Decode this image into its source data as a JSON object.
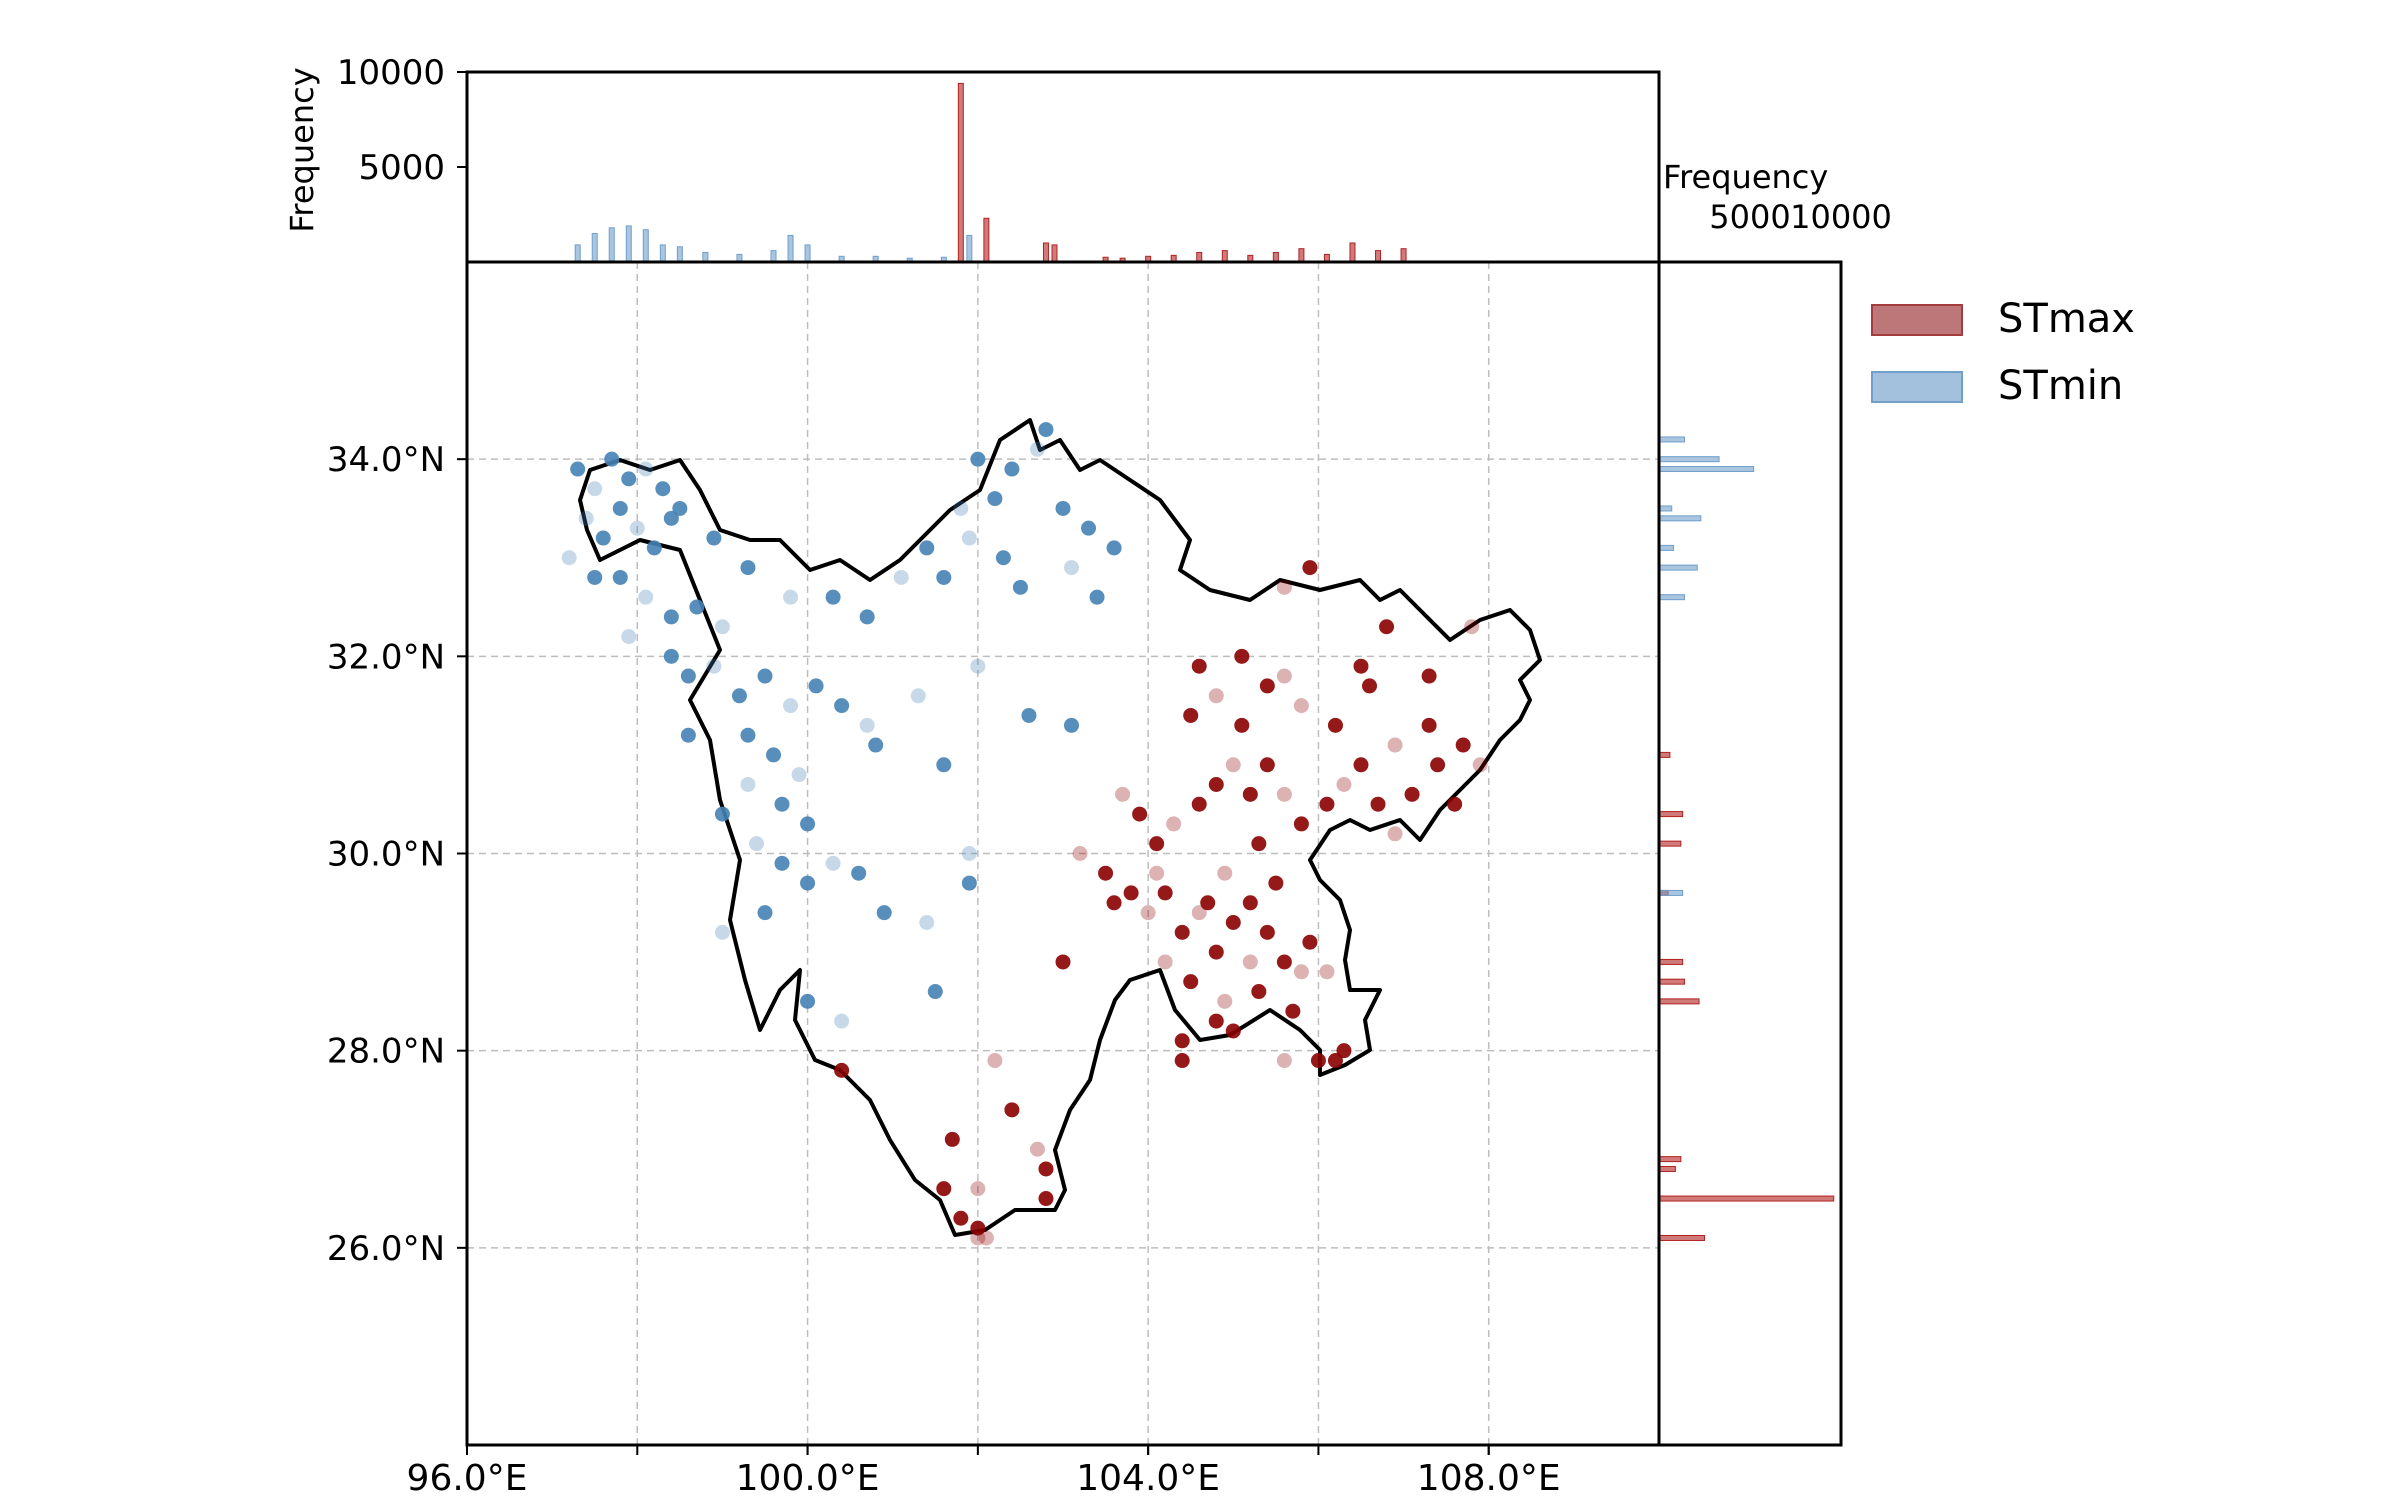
{
  "chart_data": [
    {
      "type": "scatter",
      "title": "",
      "xlabel": "",
      "ylabel": "",
      "xlim": [
        96,
        110
      ],
      "ylim": [
        24,
        36
      ],
      "x_ticks": [
        96,
        100,
        104,
        108
      ],
      "x_tick_labels": [
        "96.0°E",
        "100.0°E",
        "104.0°E",
        "108.0°E"
      ],
      "x_grid": [
        98,
        100,
        102,
        104,
        106,
        108
      ],
      "y_ticks": [
        26,
        28,
        30,
        32,
        34
      ],
      "y_tick_labels": [
        "26.0°N",
        "28.0°N",
        "30.0°N",
        "32.0°N",
        "34.0°N"
      ],
      "grid": true,
      "legend": "right",
      "series": [
        {
          "name": "STmax",
          "color": "#8b0000",
          "points": [
            [
              104.5,
              31.4
            ],
            [
              104.8,
              31.6
            ],
            [
              105.1,
              31.3
            ],
            [
              105.4,
              31.7
            ],
            [
              105.8,
              31.5
            ],
            [
              106.2,
              31.3
            ],
            [
              106.6,
              31.7
            ],
            [
              106.9,
              31.1
            ],
            [
              107.3,
              31.3
            ],
            [
              107.7,
              31.1
            ],
            [
              103.7,
              30.6
            ],
            [
              103.9,
              30.4
            ],
            [
              104.1,
              30.1
            ],
            [
              104.3,
              30.3
            ],
            [
              104.6,
              30.5
            ],
            [
              104.8,
              30.7
            ],
            [
              105.0,
              30.9
            ],
            [
              105.2,
              30.6
            ],
            [
              105.4,
              30.9
            ],
            [
              105.6,
              30.6
            ],
            [
              105.8,
              30.3
            ],
            [
              106.1,
              30.5
            ],
            [
              106.3,
              30.7
            ],
            [
              106.5,
              30.9
            ],
            [
              106.7,
              30.5
            ],
            [
              106.9,
              30.2
            ],
            [
              107.1,
              30.6
            ],
            [
              107.4,
              30.9
            ],
            [
              103.2,
              30.0
            ],
            [
              103.5,
              29.8
            ],
            [
              103.8,
              29.6
            ],
            [
              104.0,
              29.4
            ],
            [
              104.2,
              29.6
            ],
            [
              104.4,
              29.2
            ],
            [
              104.6,
              29.4
            ],
            [
              104.8,
              29.0
            ],
            [
              105.0,
              29.3
            ],
            [
              105.2,
              28.9
            ],
            [
              105.4,
              29.2
            ],
            [
              105.6,
              28.9
            ],
            [
              105.8,
              28.8
            ],
            [
              105.5,
              29.7
            ],
            [
              105.3,
              30.1
            ],
            [
              104.9,
              29.8
            ],
            [
              104.7,
              29.5
            ],
            [
              104.5,
              28.7
            ],
            [
              104.9,
              28.5
            ],
            [
              105.3,
              28.6
            ],
            [
              105.7,
              28.4
            ],
            [
              106.1,
              28.8
            ],
            [
              106.3,
              28.0
            ],
            [
              106.2,
              27.9
            ],
            [
              105.6,
              27.9
            ],
            [
              103.0,
              28.9
            ],
            [
              104.4,
              28.1
            ],
            [
              105.6,
              32.7
            ],
            [
              105.9,
              32.9
            ],
            [
              106.8,
              32.3
            ],
            [
              107.8,
              32.3
            ],
            [
              104.6,
              31.9
            ],
            [
              105.1,
              32.0
            ],
            [
              105.6,
              31.8
            ],
            [
              106.5,
              31.9
            ],
            [
              107.3,
              31.8
            ],
            [
              107.9,
              30.9
            ],
            [
              107.6,
              30.5
            ],
            [
              103.6,
              29.5
            ],
            [
              104.1,
              29.8
            ],
            [
              105.2,
              29.5
            ],
            [
              105.9,
              29.1
            ],
            [
              102.0,
              26.6
            ],
            [
              101.8,
              26.3
            ],
            [
              102.0,
              26.2
            ],
            [
              102.1,
              26.1
            ],
            [
              101.6,
              26.6
            ],
            [
              101.7,
              27.1
            ],
            [
              102.7,
              27.0
            ],
            [
              102.8,
              26.8
            ],
            [
              102.8,
              26.5
            ],
            [
              102.2,
              27.9
            ],
            [
              100.4,
              27.8
            ],
            [
              102.4,
              27.4
            ],
            [
              102.0,
              26.1
            ],
            [
              104.4,
              27.9
            ],
            [
              104.8,
              28.3
            ],
            [
              104.2,
              28.9
            ],
            [
              105.0,
              28.2
            ],
            [
              106.0,
              27.9
            ]
          ]
        },
        {
          "name": "STmin",
          "color": "#4682b4",
          "points": [
            [
              97.3,
              33.9
            ],
            [
              97.5,
              33.7
            ],
            [
              97.7,
              34.0
            ],
            [
              97.9,
              33.8
            ],
            [
              98.1,
              33.9
            ],
            [
              98.3,
              33.7
            ],
            [
              98.5,
              33.5
            ],
            [
              97.4,
              33.4
            ],
            [
              97.6,
              33.2
            ],
            [
              97.8,
              33.5
            ],
            [
              98.0,
              33.3
            ],
            [
              98.2,
              33.1
            ],
            [
              98.4,
              33.4
            ],
            [
              97.2,
              33.0
            ],
            [
              97.5,
              32.8
            ],
            [
              97.8,
              32.8
            ],
            [
              98.1,
              32.6
            ],
            [
              98.4,
              32.4
            ],
            [
              98.7,
              32.5
            ],
            [
              99.0,
              32.3
            ],
            [
              98.4,
              32.0
            ],
            [
              98.6,
              31.8
            ],
            [
              98.9,
              31.9
            ],
            [
              99.2,
              31.6
            ],
            [
              99.5,
              31.8
            ],
            [
              99.8,
              31.5
            ],
            [
              100.1,
              31.7
            ],
            [
              100.4,
              31.5
            ],
            [
              100.7,
              31.3
            ],
            [
              99.3,
              31.2
            ],
            [
              99.6,
              31.0
            ],
            [
              99.9,
              30.8
            ],
            [
              99.7,
              30.5
            ],
            [
              100.0,
              30.3
            ],
            [
              99.4,
              30.1
            ],
            [
              99.7,
              29.9
            ],
            [
              100.0,
              29.7
            ],
            [
              100.3,
              29.9
            ],
            [
              100.6,
              29.8
            ],
            [
              99.0,
              30.4
            ],
            [
              99.3,
              30.7
            ],
            [
              100.3,
              32.6
            ],
            [
              100.7,
              32.4
            ],
            [
              101.1,
              32.8
            ],
            [
              101.4,
              33.1
            ],
            [
              101.6,
              32.8
            ],
            [
              101.9,
              33.2
            ],
            [
              102.2,
              33.6
            ],
            [
              102.4,
              33.9
            ],
            [
              102.7,
              34.1
            ],
            [
              102.8,
              34.3
            ],
            [
              102.5,
              32.7
            ],
            [
              103.1,
              32.9
            ],
            [
              103.4,
              32.6
            ],
            [
              103.6,
              33.1
            ],
            [
              102.0,
              31.9
            ],
            [
              102.6,
              31.4
            ],
            [
              103.1,
              31.3
            ],
            [
              101.4,
              29.3
            ],
            [
              101.9,
              29.7
            ],
            [
              100.0,
              28.5
            ],
            [
              100.4,
              28.3
            ],
            [
              101.5,
              28.6
            ],
            [
              99.3,
              32.9
            ],
            [
              99.8,
              32.6
            ],
            [
              98.9,
              33.2
            ],
            [
              100.8,
              31.1
            ],
            [
              101.3,
              31.6
            ],
            [
              101.6,
              30.9
            ],
            [
              99.5,
              29.4
            ],
            [
              99.0,
              29.2
            ],
            [
              102.3,
              33.0
            ],
            [
              103.0,
              33.5
            ],
            [
              101.8,
              33.5
            ],
            [
              102.0,
              34.0
            ],
            [
              103.3,
              33.3
            ],
            [
              101.9,
              30.0
            ],
            [
              100.9,
              29.4
            ],
            [
              98.6,
              31.2
            ],
            [
              97.9,
              32.2
            ]
          ]
        }
      ]
    },
    {
      "type": "bar",
      "title": "",
      "xlabel": "",
      "ylabel": "Frequency",
      "xlim": [
        96,
        110
      ],
      "ylim": [
        0,
        10000
      ],
      "y_ticks": [
        5000,
        10000
      ],
      "y_tick_labels": [
        "5000",
        "10000"
      ],
      "series": [
        {
          "name": "STmax",
          "color": "#b22222",
          "x": [
            101.8,
            102.1,
            102.8,
            102.9,
            103.5,
            103.7,
            104.0,
            104.3,
            104.6,
            104.9,
            105.2,
            105.5,
            105.8,
            106.1,
            106.4,
            106.7,
            107.0
          ],
          "values": [
            9400,
            2300,
            1000,
            900,
            250,
            200,
            300,
            350,
            500,
            600,
            350,
            500,
            700,
            400,
            1000,
            600,
            700
          ]
        },
        {
          "name": "STmin",
          "color": "#6f9fca",
          "x": [
            97.3,
            97.5,
            97.7,
            97.9,
            98.1,
            98.3,
            98.5,
            98.8,
            99.2,
            99.6,
            99.8,
            100.0,
            100.4,
            100.8,
            101.2,
            101.6,
            101.9
          ],
          "values": [
            900,
            1500,
            1800,
            1900,
            1700,
            900,
            800,
            500,
            400,
            600,
            1400,
            900,
            300,
            300,
            200,
            250,
            1400
          ]
        }
      ]
    },
    {
      "type": "bar",
      "orientation": "horizontal",
      "title": "",
      "xlabel": "Frequency",
      "ylabel": "",
      "xlim": [
        0,
        10000
      ],
      "ylim": [
        24,
        36
      ],
      "x_ticks": [
        5000,
        10000
      ],
      "x_tick_labels": [
        "5000",
        "10000"
      ],
      "series": [
        {
          "name": "STmax",
          "color": "#b22222",
          "y": [
            26.1,
            26.5,
            26.8,
            26.9,
            28.5,
            28.7,
            28.9,
            29.6,
            30.1,
            30.4,
            31.0
          ],
          "values": [
            2500,
            9600,
            900,
            1200,
            2200,
            1400,
            1300,
            500,
            1200,
            1300,
            600
          ]
        },
        {
          "name": "STmin",
          "color": "#6f9fca",
          "y": [
            29.6,
            32.6,
            32.9,
            33.1,
            33.4,
            33.5,
            33.9,
            34.0,
            34.2
          ],
          "values": [
            1300,
            1400,
            2100,
            800,
            2300,
            700,
            5200,
            3300,
            1400
          ]
        }
      ]
    }
  ],
  "legend": {
    "items": [
      {
        "label": "STmax",
        "color": "#bd7779",
        "edge": "#a23c3e"
      },
      {
        "label": "STmin",
        "color": "#a3c1dd",
        "edge": "#6f9fca"
      }
    ]
  }
}
